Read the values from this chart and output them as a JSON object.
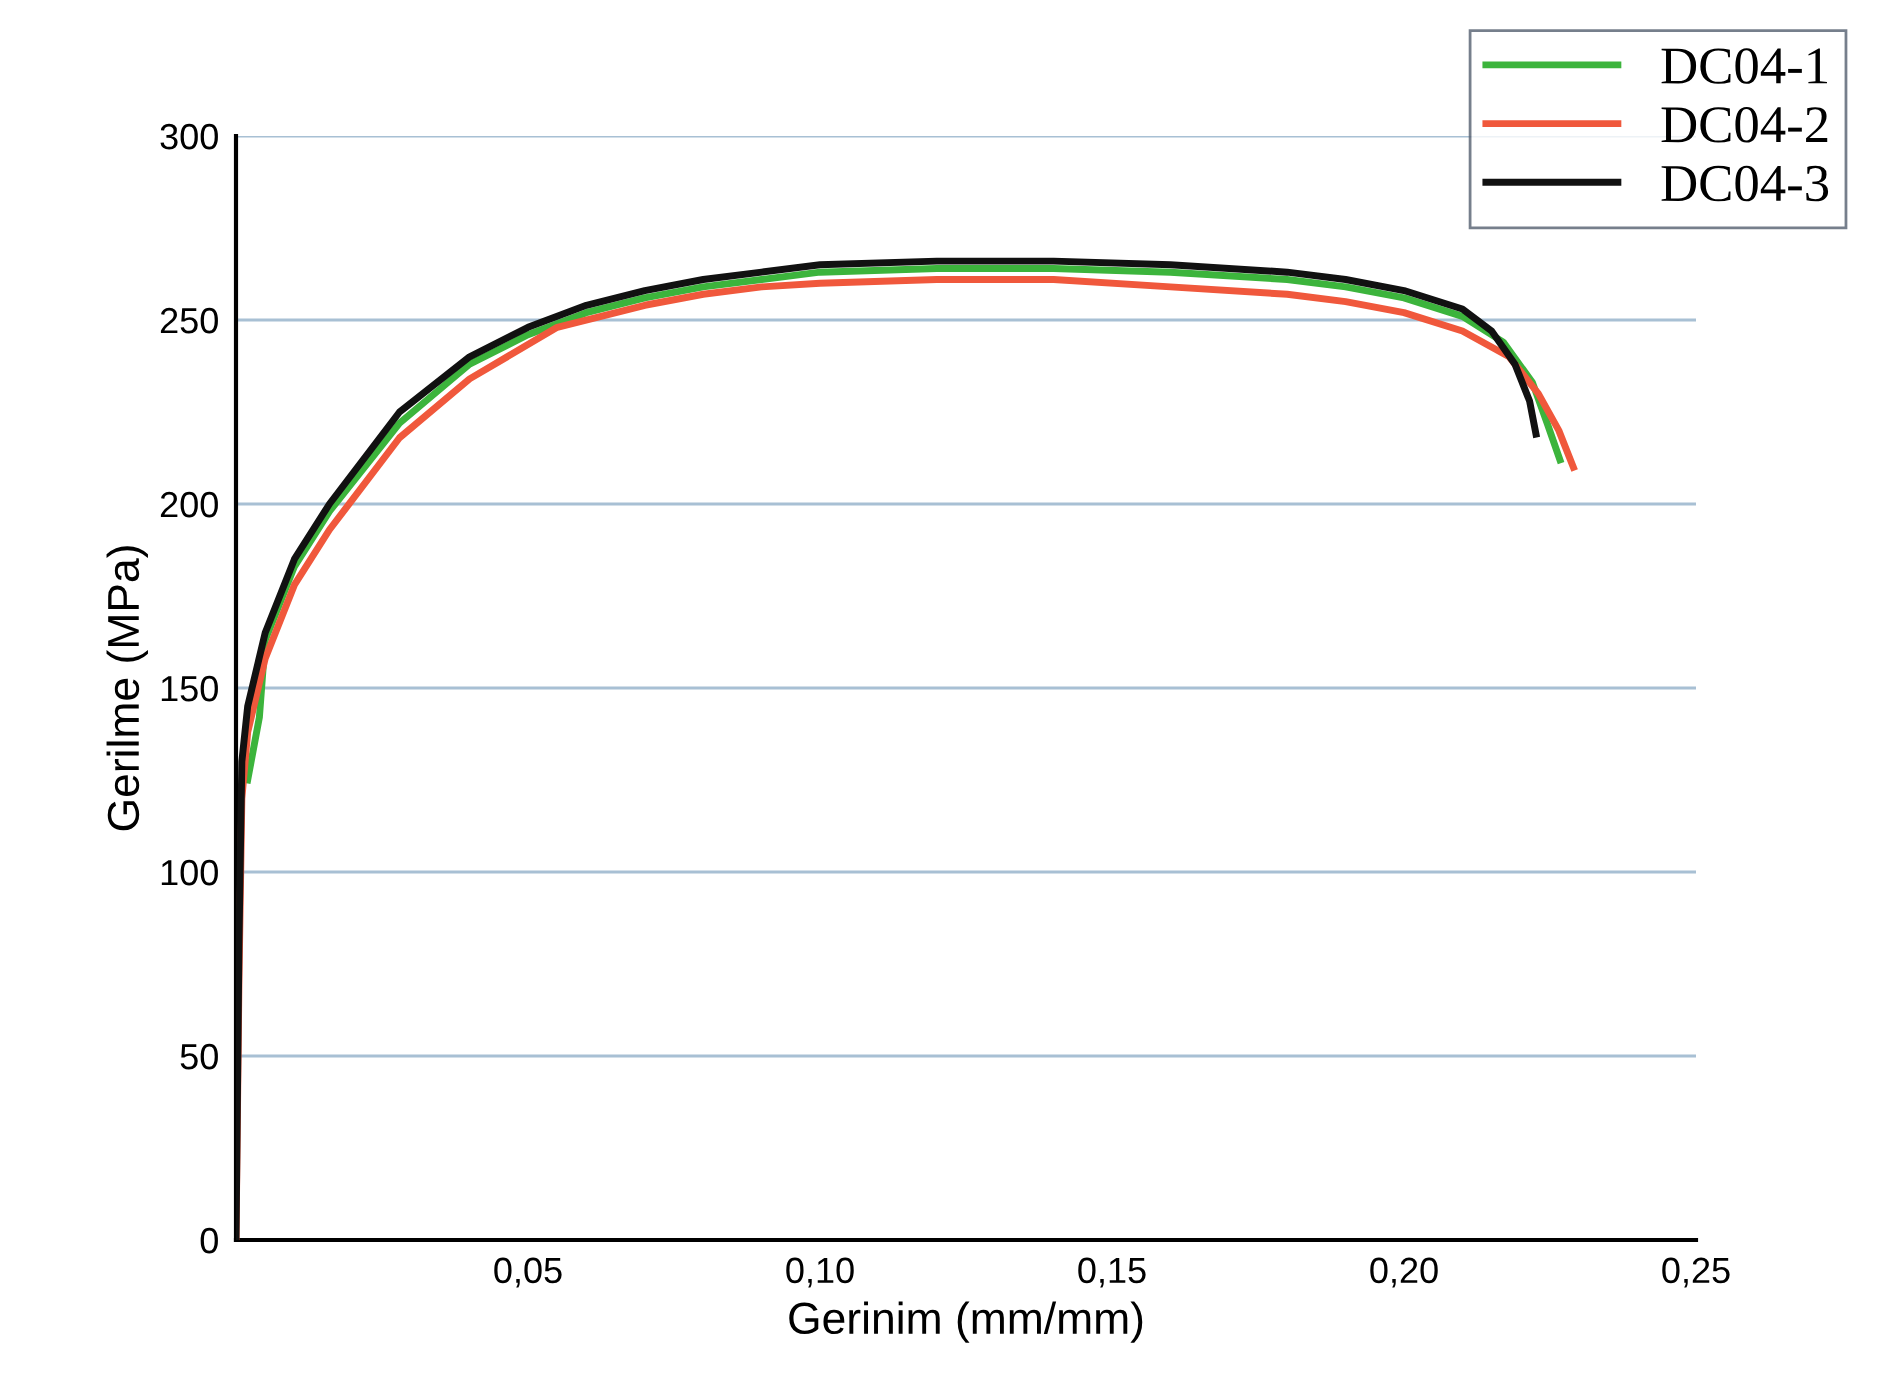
{
  "chart_data": {
    "type": "line",
    "xlabel": "Gerinim (mm/mm)",
    "ylabel": "Gerilme (MPa)",
    "xlim": [
      0,
      0.25
    ],
    "ylim": [
      0,
      300
    ],
    "xticks": [
      {
        "value": 0.05,
        "label": "0,05"
      },
      {
        "value": 0.1,
        "label": "0,10"
      },
      {
        "value": 0.15,
        "label": "0,15"
      },
      {
        "value": 0.2,
        "label": "0,20"
      },
      {
        "value": 0.25,
        "label": "0,25"
      }
    ],
    "yticks": [
      0,
      50,
      100,
      150,
      200,
      250,
      300
    ],
    "grid": "y",
    "legend": "top right",
    "marker": "none",
    "line_style": "solid",
    "series": [
      {
        "name": "DC04-1",
        "color": "#3cb43c",
        "x": [
          0.002,
          0.004,
          0.005,
          0.01,
          0.016,
          0.028,
          0.04,
          0.05,
          0.06,
          0.07,
          0.08,
          0.09,
          0.1,
          0.12,
          0.14,
          0.16,
          0.18,
          0.19,
          0.2,
          0.21,
          0.217,
          0.222,
          0.2245,
          0.2267
        ],
        "values": [
          125,
          142,
          163,
          183,
          198,
          222,
          238,
          246,
          252,
          256,
          259,
          261,
          263,
          264,
          264,
          263,
          261,
          259,
          256,
          251,
          244,
          233,
          222,
          212
        ]
      },
      {
        "name": "DC04-2",
        "color": "#f0583c",
        "x": [
          0,
          0.0005,
          0.001,
          0.002,
          0.005,
          0.01,
          0.016,
          0.028,
          0.04,
          0.055,
          0.07,
          0.08,
          0.09,
          0.1,
          0.12,
          0.14,
          0.16,
          0.18,
          0.19,
          0.2,
          0.21,
          0.218,
          0.223,
          0.2265,
          0.229
        ],
        "values": [
          0,
          70,
          120,
          138,
          158,
          178,
          193,
          218,
          234,
          248,
          254,
          257,
          259,
          260,
          261,
          261,
          259,
          257,
          255,
          252,
          247,
          240,
          230,
          220,
          210
        ]
      },
      {
        "name": "DC04-3",
        "color": "#111111",
        "x": [
          0,
          0.0005,
          0.001,
          0.002,
          0.005,
          0.01,
          0.016,
          0.028,
          0.04,
          0.05,
          0.06,
          0.07,
          0.08,
          0.09,
          0.1,
          0.12,
          0.14,
          0.16,
          0.18,
          0.19,
          0.2,
          0.21,
          0.215,
          0.219,
          0.2215,
          0.2226
        ],
        "values": [
          0,
          80,
          130,
          145,
          165,
          185,
          200,
          225,
          240,
          248,
          254,
          258,
          261,
          263,
          265,
          266,
          266,
          265,
          263,
          261,
          258,
          253,
          247,
          238,
          228,
          219
        ]
      }
    ]
  }
}
